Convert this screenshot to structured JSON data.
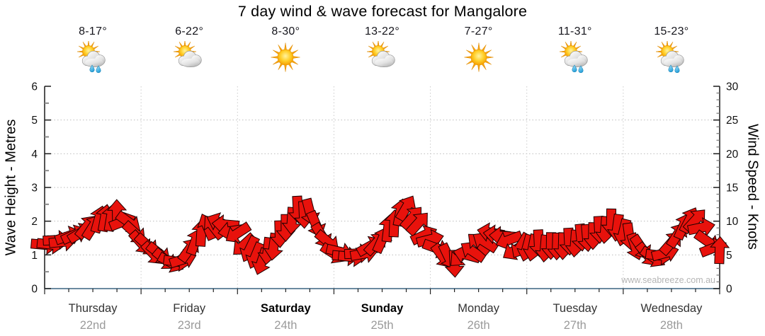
{
  "title": "7 day wind & wave forecast for Mangalore",
  "watermark": "www.seabreeze.com.au",
  "left_axis": {
    "label": "Wave Height - Metres",
    "min": 0,
    "max": 6,
    "major_ticks": [
      0,
      1,
      2,
      3,
      4,
      5,
      6
    ],
    "minor_step": 0.5
  },
  "right_axis": {
    "label": "Wind Speed - Knots",
    "min": 0,
    "max": 30,
    "major_ticks": [
      0,
      5,
      10,
      15,
      20,
      25,
      30
    ],
    "minor_step": 1
  },
  "days": [
    {
      "name": "Thursday",
      "date": "22nd",
      "temp": "8-17°",
      "icon": "sun-cloud-rain-icon",
      "weekend": false
    },
    {
      "name": "Friday",
      "date": "23rd",
      "temp": "6-22°",
      "icon": "sun-cloud-icon",
      "weekend": false
    },
    {
      "name": "Saturday",
      "date": "24th",
      "temp": "8-30°",
      "icon": "sun-icon",
      "weekend": true
    },
    {
      "name": "Sunday",
      "date": "25th",
      "temp": "13-22°",
      "icon": "sun-cloud-icon",
      "weekend": true
    },
    {
      "name": "Monday",
      "date": "26th",
      "temp": "7-27°",
      "icon": "sun-icon",
      "weekend": false
    },
    {
      "name": "Tuesday",
      "date": "27th",
      "temp": "11-31°",
      "icon": "sun-cloud-rain-icon",
      "weekend": false
    },
    {
      "name": "Wednesday",
      "date": "28th",
      "temp": "15-23°",
      "icon": "sun-cloud-rain-icon",
      "weekend": false
    }
  ],
  "chart_data": {
    "type": "wind-arrow-series",
    "title": "7 day wind & wave forecast for Mangalore",
    "x_unit": "hours",
    "x_range": [
      0,
      168
    ],
    "days_span_hours": 24,
    "ylabel_left": "Wave Height - Metres",
    "ylabel_right": "Wind Speed - Knots",
    "ylim_left_metres": [
      0,
      6
    ],
    "ylim_right_knots": [
      0,
      30
    ],
    "grid": "dotted horizontal at 1-5 m, dotted vertical at day boundaries",
    "legend_position": "none",
    "series_format": [
      "hour",
      "wind_knots",
      "arrow_dir_deg"
    ],
    "dir_convention": "screen rotation: 0=east(right), 90=south(down), -90/270=north(up), 180=west(left)",
    "series": [
      [
        0,
        6.5,
        5
      ],
      [
        3,
        7,
        0
      ],
      [
        6,
        7.5,
        -15
      ],
      [
        9,
        8.5,
        -35
      ],
      [
        12,
        9.5,
        -60
      ],
      [
        15,
        10.5,
        -80
      ],
      [
        18,
        11,
        -88
      ],
      [
        21,
        9.5,
        40
      ],
      [
        24,
        7,
        45
      ],
      [
        27,
        5.5,
        45
      ],
      [
        30,
        4.3,
        40
      ],
      [
        33,
        3.8,
        10
      ],
      [
        36,
        5.5,
        -50
      ],
      [
        39,
        8.5,
        -90
      ],
      [
        42,
        9.5,
        -130
      ],
      [
        45,
        9.5,
        -175
      ],
      [
        48,
        8,
        150
      ],
      [
        51,
        5.5,
        120
      ],
      [
        54,
        4.2,
        105
      ],
      [
        57,
        6.5,
        95
      ],
      [
        60,
        9,
        90
      ],
      [
        63,
        11.5,
        90
      ],
      [
        66,
        11,
        80
      ],
      [
        69,
        8,
        55
      ],
      [
        72,
        5.5,
        30
      ],
      [
        75,
        4.8,
        5
      ],
      [
        78,
        5,
        0
      ],
      [
        81,
        6,
        -25
      ],
      [
        84,
        7.5,
        -70
      ],
      [
        87,
        10,
        -90
      ],
      [
        90,
        12,
        -60
      ],
      [
        93,
        9.5,
        -45
      ],
      [
        96,
        7,
        -10
      ],
      [
        99,
        5,
        50
      ],
      [
        102,
        4,
        85
      ],
      [
        105,
        5,
        195
      ],
      [
        108,
        6.5,
        225
      ],
      [
        111,
        8,
        195
      ],
      [
        114,
        8,
        180
      ],
      [
        117,
        6,
        145
      ],
      [
        120,
        6,
        105
      ],
      [
        123,
        6.5,
        90
      ],
      [
        126,
        6,
        95
      ],
      [
        129,
        6.5,
        88
      ],
      [
        132,
        7,
        92
      ],
      [
        135,
        7.5,
        85
      ],
      [
        138,
        8.5,
        90
      ],
      [
        141,
        9.5,
        95
      ],
      [
        144,
        8.5,
        100
      ],
      [
        147,
        6.5,
        70
      ],
      [
        150,
        5,
        50
      ],
      [
        153,
        4.7,
        10
      ],
      [
        156,
        6.5,
        -45
      ],
      [
        159,
        9.5,
        -70
      ],
      [
        162,
        10.5,
        -50
      ],
      [
        165,
        7,
        35
      ],
      [
        168,
        5.5,
        -85
      ]
    ],
    "colors": {
      "arrow_fill": "#e8120c",
      "arrow_outline": "#1d0000",
      "axis": "#1a1a1a",
      "x_axis_line": "#3a6480",
      "grid_h": "#bdbdbd",
      "grid_v": "#cbcbcb",
      "day_name": "#333333",
      "day_name_weekend": "#000000",
      "day_date": "#9a9a9a",
      "watermark": "#b5b5b5"
    }
  }
}
